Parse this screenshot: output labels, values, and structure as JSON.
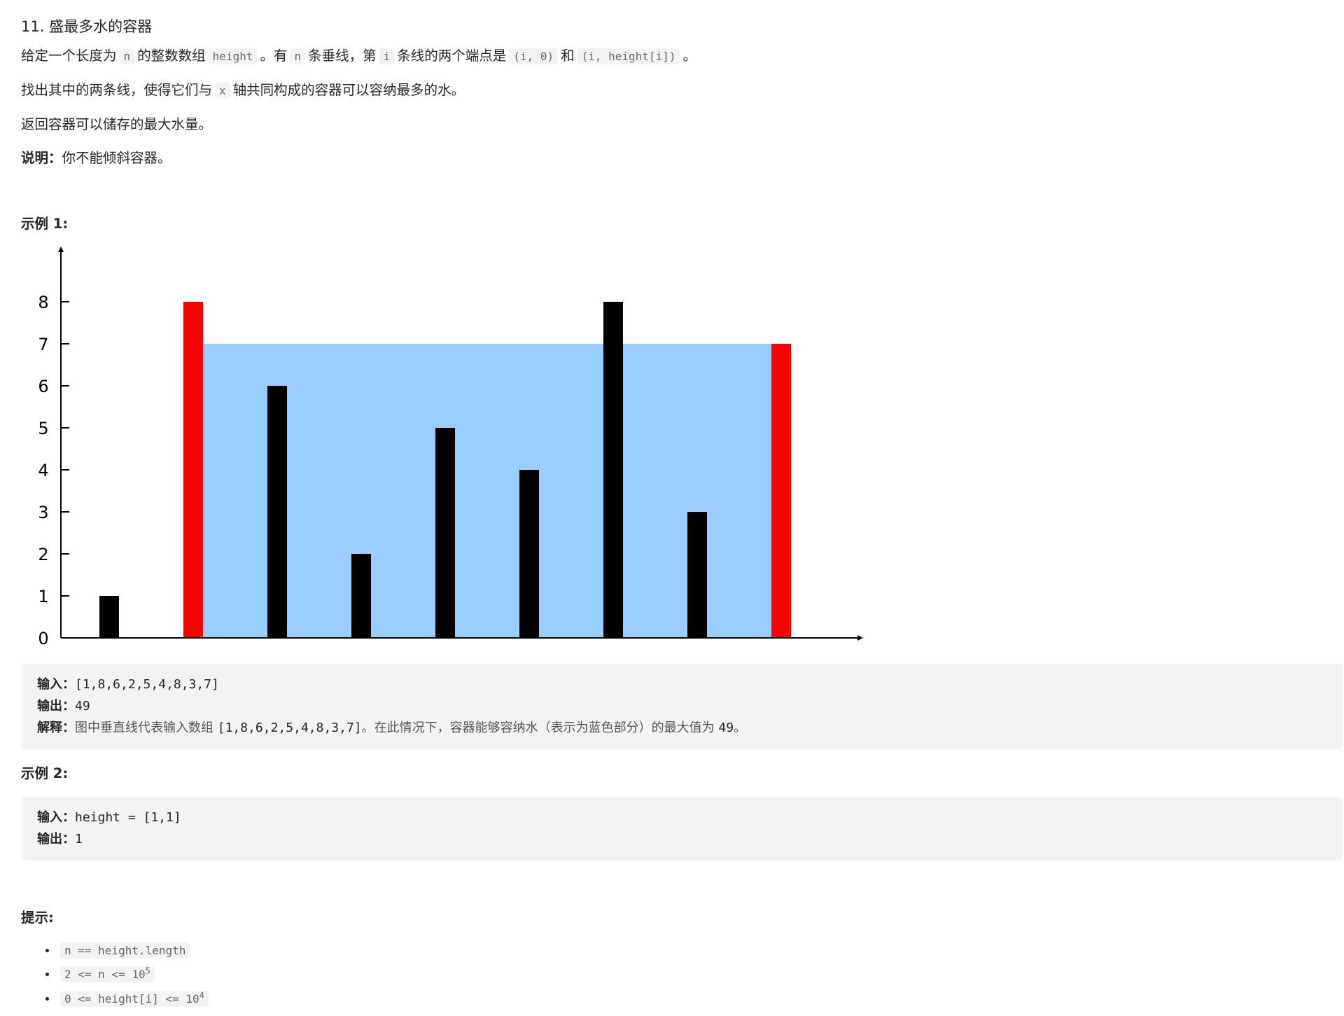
{
  "problem": {
    "title": "11. 盛最多水的容器",
    "desc": {
      "p1_a": "给定一个长度为",
      "n": "n",
      "p1_b": "的整数数组",
      "height": "height",
      "p1_c": "。有",
      "p1_d": "条垂线，第",
      "i": "i",
      "p1_e": "条线的两个端点是",
      "pt1": "(i, 0)",
      "p1_f": "和",
      "pt2": "(i, height[i])",
      "p1_g": "。",
      "p2_a": "找出其中的两条线，使得它们与",
      "x": "x",
      "p2_b": "轴共同构成的容器可以容纳最多的水。",
      "p3": "返回容器可以储存的最大水量。",
      "note_label": "说明：",
      "note_text": "你不能倾斜容器。"
    },
    "example1": {
      "title": "示例 1:",
      "input_label": "输入：",
      "input": "[1,8,6,2,5,4,8,3,7]",
      "output_label": "输出：",
      "output": "49",
      "explain_label": "解释：",
      "explain_a": "图中垂直线代表输入数组 ",
      "explain_arr": "[1,8,6,2,5,4,8,3,7]",
      "explain_b": "。在此情况下，容器能够容纳水（表示为蓝色部分）的最大值为 ",
      "explain_val": "49",
      "explain_c": "。"
    },
    "example2": {
      "title": "示例 2:",
      "input_label": "输入：",
      "input": "height = [1,1]",
      "output_label": "输出：",
      "output": "1"
    },
    "hints": {
      "title": "提示:",
      "h1": "n == height.length",
      "h2_base": "2 <= n <= 10",
      "h2_exp": "5",
      "h3_base": "0 <= height[i] <= 10",
      "h3_exp": "4"
    }
  },
  "chart_data": {
    "type": "bar",
    "values": [
      1,
      8,
      6,
      2,
      5,
      4,
      8,
      3,
      7
    ],
    "highlight_indices": [
      1,
      8
    ],
    "water_level": 7,
    "y_ticks": [
      "0",
      "1",
      "2",
      "3",
      "4",
      "5",
      "6",
      "7",
      "8"
    ],
    "ylim": [
      0,
      9
    ],
    "colors": {
      "bar": "#000000",
      "highlight": "#ff0000",
      "water": "#99ccff",
      "axis": "#000000"
    }
  }
}
